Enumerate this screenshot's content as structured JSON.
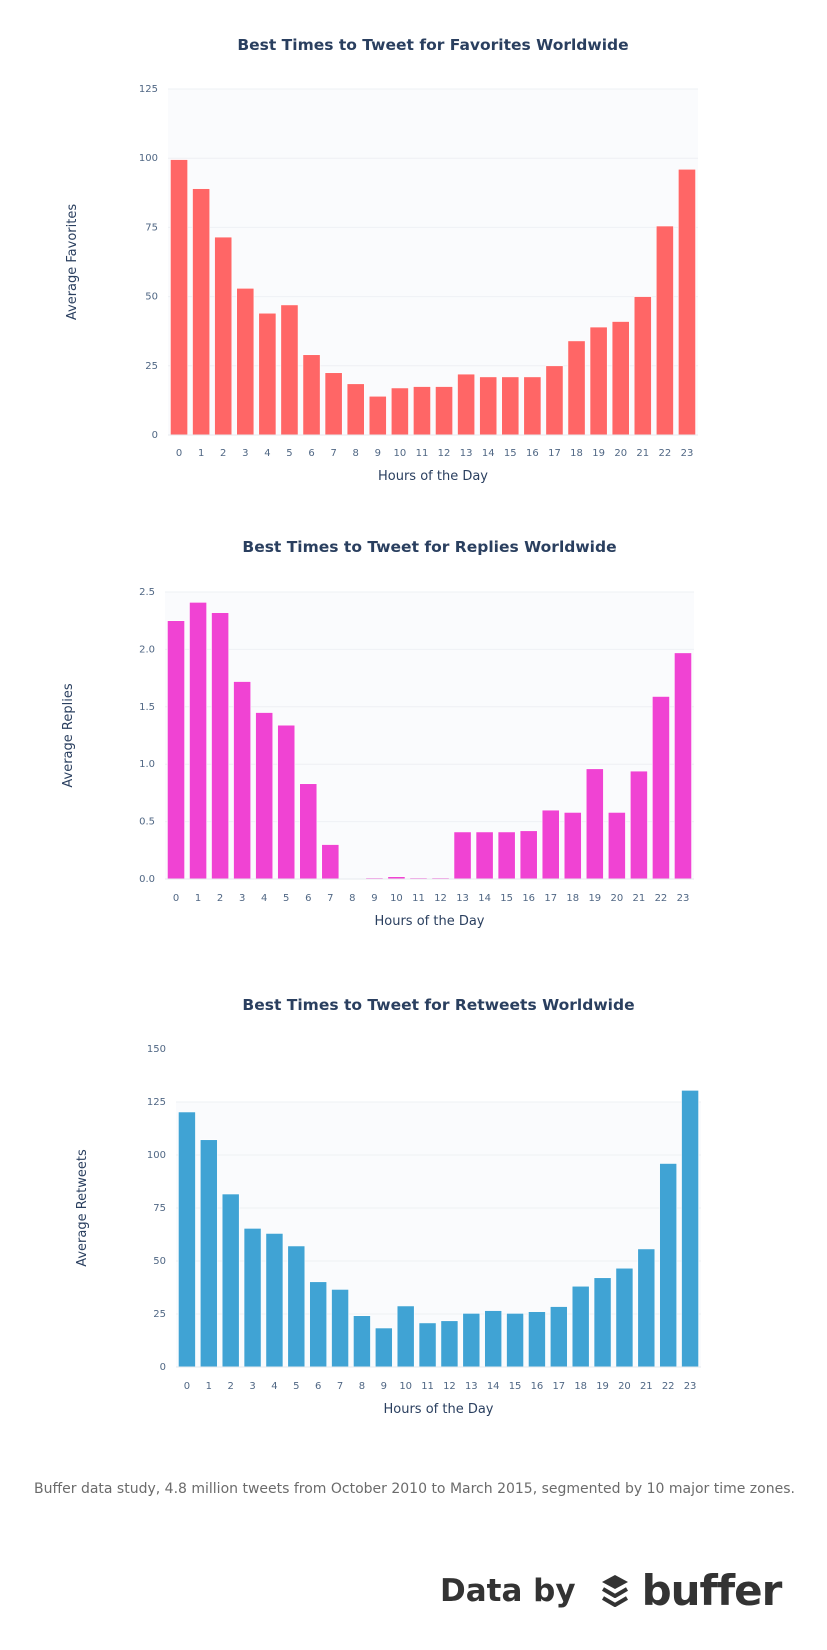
{
  "chart_data": [
    {
      "type": "bar",
      "title": "Best Times to Tweet for Favorites Worldwide",
      "xlabel": "Hours of the Day",
      "ylabel": "Average Favorites",
      "categories": [
        "0",
        "1",
        "2",
        "3",
        "4",
        "5",
        "6",
        "7",
        "8",
        "9",
        "10",
        "11",
        "12",
        "13",
        "14",
        "15",
        "16",
        "17",
        "18",
        "19",
        "20",
        "21",
        "22",
        "23"
      ],
      "values": [
        99.5,
        89,
        71.5,
        53,
        44,
        47,
        29,
        22.5,
        18.5,
        14,
        17,
        17.5,
        17.5,
        22,
        21,
        21,
        21,
        25,
        34,
        39,
        41,
        50,
        75.5,
        96
      ],
      "yticks": [
        "0",
        "25",
        "50",
        "75",
        "100",
        "125"
      ],
      "ylim": [
        0,
        125
      ],
      "grid": true,
      "color": "#ff6666"
    },
    {
      "type": "bar",
      "title": "Best Times to Tweet for Replies Worldwide",
      "xlabel": "Hours of the Day",
      "ylabel": "Average Replies",
      "categories": [
        "0",
        "1",
        "2",
        "3",
        "4",
        "5",
        "6",
        "7",
        "8",
        "9",
        "10",
        "11",
        "12",
        "13",
        "14",
        "15",
        "16",
        "17",
        "18",
        "19",
        "20",
        "21",
        "22",
        "23"
      ],
      "values": [
        2.25,
        2.41,
        2.32,
        1.72,
        1.45,
        1.34,
        0.83,
        0.3,
        0.0,
        0.01,
        0.02,
        0.01,
        0.01,
        0.41,
        0.41,
        0.41,
        0.42,
        0.6,
        0.58,
        0.96,
        0.58,
        0.94,
        1.59,
        1.97
      ],
      "yticks": [
        "0.0",
        "0.5",
        "1.0",
        "1.5",
        "2.0",
        "2.5"
      ],
      "ylim": [
        0,
        2.5
      ],
      "grid": true,
      "color": "#f043d3"
    },
    {
      "type": "bar",
      "title": "Best Times to Tweet for Retweets Worldwide",
      "xlabel": "Hours of the Day",
      "ylabel": "Average Retweets",
      "categories": [
        "0",
        "1",
        "2",
        "3",
        "4",
        "5",
        "6",
        "7",
        "8",
        "9",
        "10",
        "11",
        "12",
        "13",
        "14",
        "15",
        "16",
        "17",
        "18",
        "19",
        "20",
        "21",
        "22",
        "23"
      ],
      "values": [
        120.3,
        107.2,
        81.6,
        65.4,
        63,
        57.1,
        40.2,
        36.6,
        24.2,
        18.4,
        28.8,
        20.8,
        21.8,
        25.3,
        26.6,
        25.3,
        26.1,
        28.5,
        38.1,
        42.1,
        46.6,
        55.7,
        96,
        130.5
      ],
      "yticks": [
        "0",
        "25",
        "50",
        "75",
        "100",
        "125",
        "150"
      ],
      "ylim": [
        0,
        150
      ],
      "grid": true,
      "color": "#40a3d4"
    }
  ],
  "footer": {
    "note": "Buffer data study, 4.8 million tweets from October 2010 to March 2015, segmented by 10 major time zones.",
    "credit_label": "Data by",
    "logo_text": "buffer"
  },
  "colors": {
    "plot_bg": "#fafbfd",
    "grid": "#eef0f4",
    "title": "#2a3f5f",
    "tick": "#506784"
  }
}
